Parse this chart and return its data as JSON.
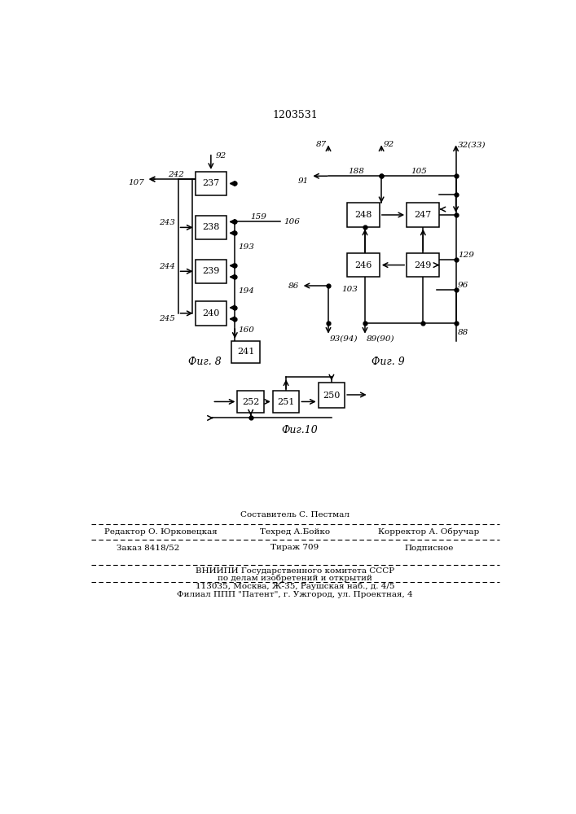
{
  "title": "1203531",
  "fig8_label": "Фиг. 8",
  "fig9_label": "Фиг. 9",
  "fig10_label": "Фиг.10",
  "footer_line1": "Составитель С. Пестмал",
  "footer_line2a": "Редактор О. Юрковецкая",
  "footer_line2b": "Техред А.Бойко",
  "footer_line2c": "Корректор А. Обручар",
  "footer_line3a": "Заказ 8418/52",
  "footer_line3b": "Тираж 709",
  "footer_line3c": "Подписное",
  "footer_line4": "ВНИИПИ Государственного комитета СССР",
  "footer_line5": "по делам изобретений и открытий",
  "footer_line6": "113035, Москва, Ж-35, Раушская наб., д. 4/5",
  "footer_line7": "Филиал ППП \"Патент\", г. Ужгород, ул. Проектная, 4",
  "bg_color": "#ffffff"
}
